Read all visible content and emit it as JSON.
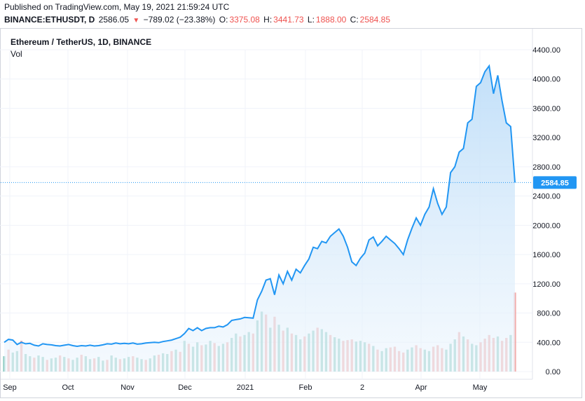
{
  "header": {
    "published": "Published on TradingView.com, May 19, 2021 21:59:24 UTC",
    "symbol": "BINANCE:ETHUSDT, D",
    "last": "2586.05",
    "arrow_icon": "triangle-down-icon",
    "change": "−789.02 (−23.38%)",
    "open_label": "O:",
    "open": "3375.08",
    "high_label": "H:",
    "high": "3441.73",
    "low_label": "L:",
    "low": "1888.00",
    "close_label": "C:",
    "close": "2584.85"
  },
  "chart_title": "Ethereum / TetherUS, 1D, BINANCE",
  "volume_label": "Vol",
  "colors": {
    "line": "#2196f3",
    "area": "#cfe6fb",
    "volume_up": "#7cc3b8",
    "volume_down": "#f0a09d",
    "price_tag": "#2196f3"
  },
  "chart_data": {
    "type": "area",
    "ylim": [
      0,
      4400
    ],
    "yticks": [
      "4400.00",
      "4000.00",
      "3600.00",
      "3200.00",
      "2800.00",
      "2400.00",
      "2000.00",
      "1600.00",
      "1200.00",
      "800.00",
      "400.00",
      "0.00"
    ],
    "xticks": [
      "Sep",
      "Oct",
      "Nov",
      "Dec",
      "2021",
      "Feb",
      "2",
      "Apr",
      "May"
    ],
    "last_price_label": "2584.85",
    "series": [
      {
        "values": [
          400,
          440,
          430,
          370,
          400,
          380,
          385,
          360,
          350,
          380,
          370,
          365,
          355,
          350,
          360,
          370,
          355,
          345,
          355,
          350,
          360,
          350,
          355,
          365,
          380,
          375,
          390,
          380,
          385,
          380,
          390,
          375,
          380,
          390,
          395,
          400,
          395,
          410,
          420,
          430,
          450,
          470,
          520,
          590,
          560,
          600,
          560,
          590,
          600,
          600,
          620,
          610,
          640,
          700,
          710,
          720,
          740,
          735,
          730,
          980,
          1100,
          1250,
          1270,
          1050,
          1320,
          1200,
          1370,
          1250,
          1400,
          1350,
          1450,
          1540,
          1700,
          1680,
          1780,
          1760,
          1850,
          1900,
          1950,
          1850,
          1700,
          1500,
          1450,
          1550,
          1620,
          1800,
          1840,
          1720,
          1780,
          1850,
          1800,
          1750,
          1680,
          1600,
          1800,
          1960,
          2100,
          2000,
          2150,
          2250,
          2500,
          2300,
          2150,
          2250,
          2720,
          2800,
          3000,
          3050,
          3400,
          3450,
          3900,
          3950,
          4100,
          4180,
          3800,
          4050,
          3700,
          3400,
          3350,
          2586
        ]
      }
    ],
    "volume": {
      "ylim": [
        0,
        4400
      ],
      "values": [
        210,
        300,
        260,
        280,
        420,
        240,
        210,
        190,
        220,
        200,
        160,
        180,
        190,
        220,
        200,
        180,
        160,
        190,
        230,
        210,
        170,
        180,
        200,
        150,
        160,
        220,
        190,
        170,
        180,
        200,
        210,
        190,
        170,
        160,
        180,
        220,
        230,
        250,
        240,
        280,
        300,
        270,
        420,
        380,
        340,
        400,
        360,
        370,
        420,
        390,
        350,
        380,
        400,
        460,
        520,
        480,
        500,
        540,
        520,
        700,
        820,
        780,
        600,
        750,
        640,
        560,
        600,
        520,
        500,
        440,
        480,
        520,
        560,
        600,
        580,
        540,
        500,
        470,
        450,
        420,
        430,
        440,
        410,
        420,
        400,
        380,
        350,
        300,
        280,
        320,
        330,
        340,
        280,
        260,
        300,
        330,
        360,
        320,
        300,
        280,
        340,
        360,
        320,
        300,
        380,
        440,
        540,
        480,
        440,
        380,
        360,
        400,
        450,
        500,
        460,
        480,
        420,
        460,
        500,
        1080
      ],
      "down": [
        0,
        1,
        0,
        0,
        1,
        0,
        0,
        1,
        0,
        0,
        1,
        0,
        0,
        1,
        0,
        1,
        0,
        0,
        1,
        0,
        0,
        1,
        0,
        0,
        1,
        0,
        0,
        1,
        0,
        0,
        1,
        0,
        0,
        1,
        0,
        0,
        1,
        0,
        0,
        1,
        0,
        1,
        0,
        1,
        0,
        0,
        1,
        0,
        0,
        1,
        0,
        0,
        1,
        0,
        0,
        1,
        0,
        0,
        1,
        0,
        0,
        1,
        0,
        1,
        0,
        1,
        0,
        1,
        0,
        0,
        1,
        0,
        0,
        1,
        0,
        0,
        1,
        0,
        0,
        1,
        1,
        1,
        0,
        0,
        0,
        1,
        0,
        1,
        0,
        0,
        1,
        1,
        1,
        1,
        0,
        0,
        1,
        1,
        0,
        0,
        1,
        1,
        1,
        0,
        0,
        0,
        1,
        0,
        1,
        0,
        0,
        1,
        1,
        1,
        1,
        0,
        1,
        1,
        0,
        1
      ]
    }
  }
}
